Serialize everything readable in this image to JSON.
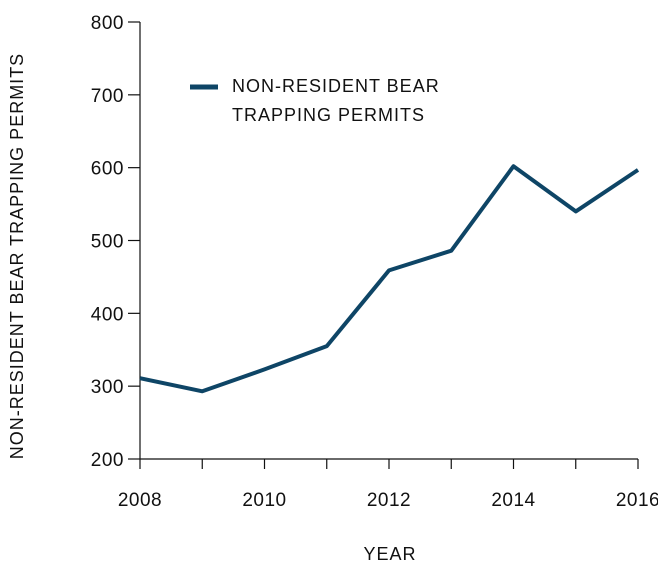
{
  "chart_data": {
    "type": "line",
    "title": "",
    "xlabel": "YEAR",
    "ylabel": "NON-RESIDENT BEAR TRAPPING PERMITS",
    "xlim": [
      2008,
      2016
    ],
    "ylim": [
      200,
      800
    ],
    "x_ticks": [
      2008,
      2010,
      2012,
      2014,
      2016
    ],
    "y_ticks": [
      200,
      300,
      400,
      500,
      600,
      700,
      800
    ],
    "grid": false,
    "legend": {
      "placement": "top-left",
      "entries": [
        "NON-RESIDENT BEAR",
        "TRAPPING PERMITS"
      ]
    },
    "series": [
      {
        "name": "NON-RESIDENT BEAR TRAPPING PERMITS",
        "color": "#0e4566",
        "x": [
          2008,
          2009,
          2010,
          2011,
          2012,
          2013,
          2014,
          2015,
          2016
        ],
        "y": [
          311,
          293,
          323,
          355,
          459,
          486,
          602,
          540,
          597
        ]
      }
    ]
  }
}
